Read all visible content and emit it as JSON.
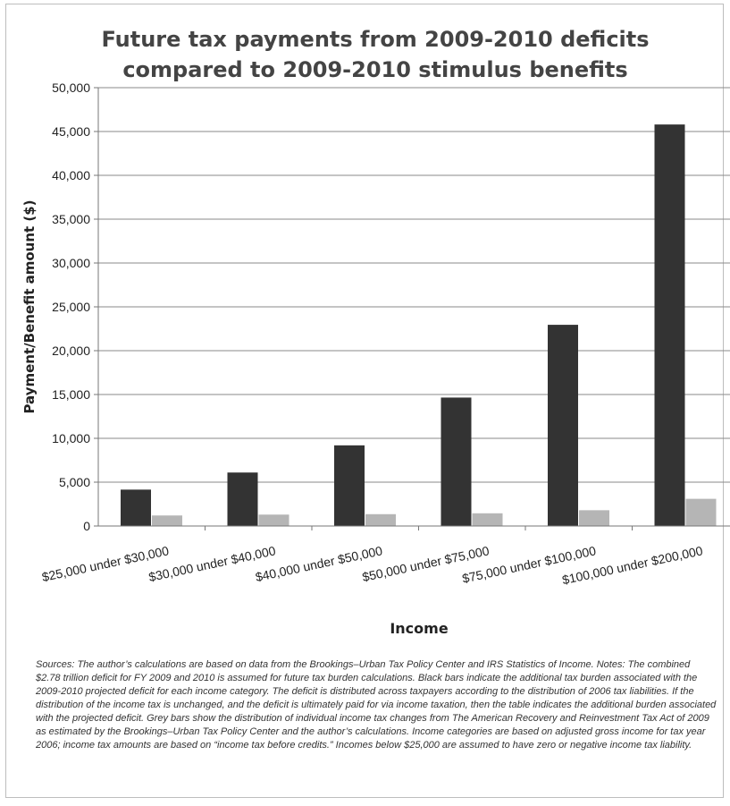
{
  "chart_data": {
    "type": "bar",
    "title_lines": [
      "Future tax payments from 2009-2010 deficits",
      "compared to 2009-2010 stimulus benefits"
    ],
    "xlabel": "Income",
    "ylabel": "Payment/Benefit amount  ($)",
    "ylim": [
      0,
      50000
    ],
    "y_ticks": [
      0,
      5000,
      10000,
      15000,
      20000,
      25000,
      30000,
      35000,
      40000,
      45000,
      50000
    ],
    "y_tick_labels": [
      "0",
      "5,000",
      "10,000",
      "15,000",
      "20,000",
      "25,000",
      "30,000",
      "35,000",
      "40,000",
      "45,000",
      "50,000"
    ],
    "grid": true,
    "legend": "none",
    "categories": [
      "$25,000 under $30,000",
      "$30,000 under $40,000",
      "$40,000 under $50,000",
      "$50,000 under $75,000",
      "$75,000 under $100,000",
      "$100,000 under $200,000"
    ],
    "series": [
      {
        "color": "#333333",
        "values": [
          4150,
          6100,
          9200,
          14650,
          22950,
          45800
        ]
      },
      {
        "color": "#b5b5b5",
        "values": [
          1200,
          1300,
          1350,
          1450,
          1800,
          3100
        ]
      }
    ]
  },
  "notes": "Sources: The author’s calculations are based on data from the Brookings–Urban Tax Policy Center and IRS Statistics of Income. Notes: The combined $2.78 trillion deficit for FY 2009 and 2010 is assumed for future tax burden calculations. Black bars indicate the additional tax burden associated with the 2009-2010 projected deficit for each income category. The deficit is distributed across taxpayers according to the distribution of 2006 tax liabilities. If the distribution of the income tax is unchanged, and the deficit is ultimately paid for via income taxation, then the table indicates the additional burden associated with the projected deficit. Grey bars show the distribution of individual income tax changes from The American Recovery and Reinvestment Tax Act of 2009 as estimated by the Brookings–Urban Tax Policy Center and the author’s calculations. Income categories are based on adjusted gross income for tax year 2006; income tax amounts are based on “income tax before credits.” Incomes below $25,000 are assumed to have zero or negative income tax liability."
}
